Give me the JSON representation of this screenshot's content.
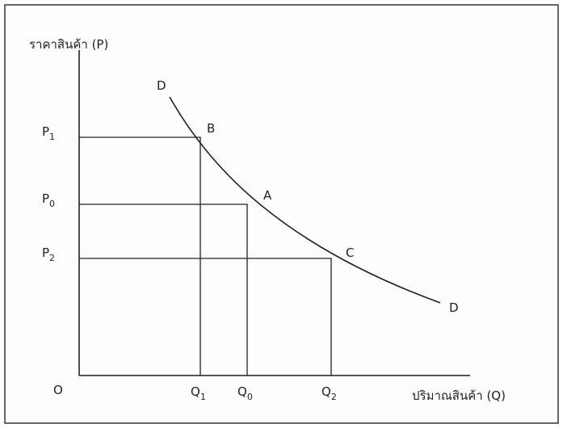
{
  "y_axis_label": "ราคาสินค้า (P)",
  "x_axis_label": "ปริมาณสินค้า (Q)",
  "origin": "O",
  "curve_labels": [
    "D",
    "D"
  ],
  "points": [
    {
      "label": "B",
      "price": {
        "base": "P",
        "sub": "1"
      },
      "quantity": {
        "base": "Q",
        "sub": "1"
      }
    },
    {
      "label": "A",
      "price": {
        "base": "P",
        "sub": "0"
      },
      "quantity": {
        "base": "Q",
        "sub": "0"
      }
    },
    {
      "label": "C",
      "price": {
        "base": "P",
        "sub": "2"
      },
      "quantity": {
        "base": "Q",
        "sub": "2"
      }
    }
  ]
}
